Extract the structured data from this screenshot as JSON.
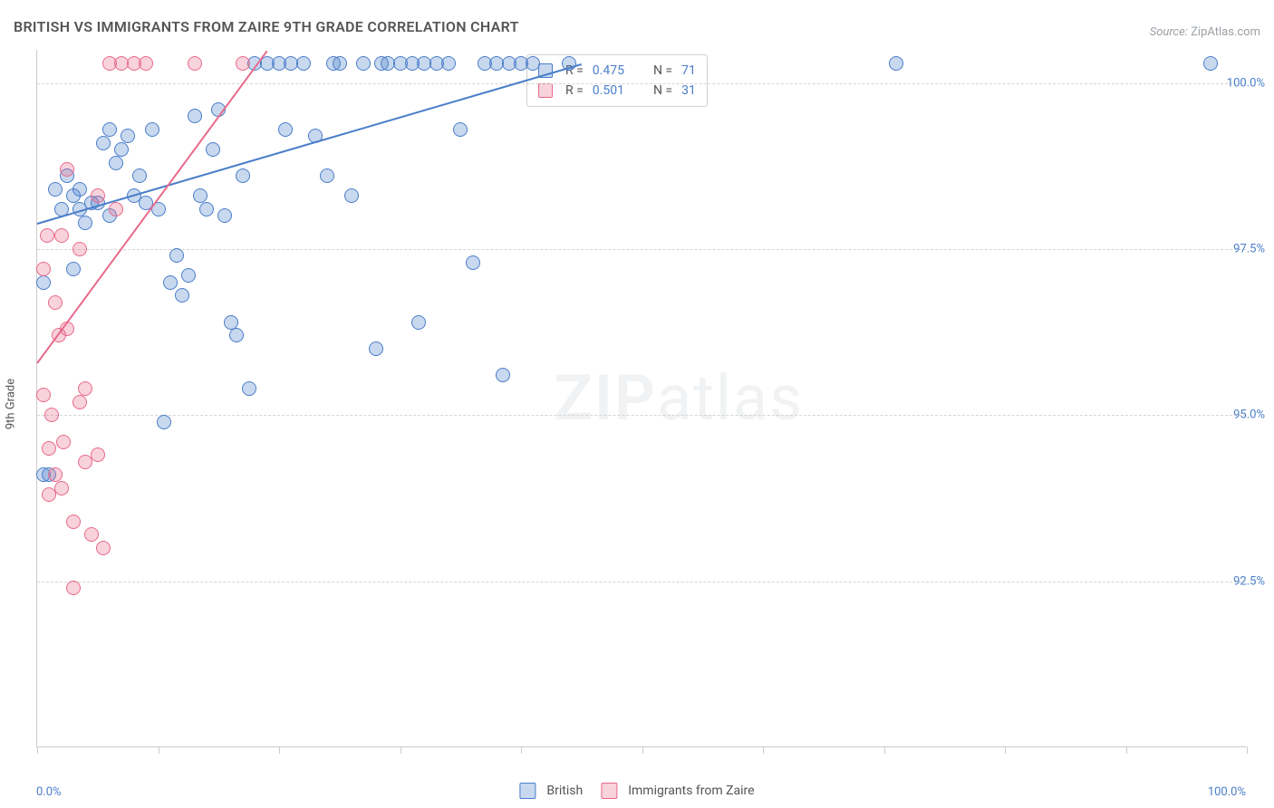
{
  "title": "BRITISH VS IMMIGRANTS FROM ZAIRE 9TH GRADE CORRELATION CHART",
  "source": {
    "label": "Source:",
    "value": "ZipAtlas.com"
  },
  "ylabel": "9th Grade",
  "watermark": {
    "bold": "ZIP",
    "rest": "atlas"
  },
  "chart": {
    "type": "scatter",
    "background_color": "#ffffff",
    "grid_color": "#d5d5d5",
    "grid_dash": "4,4",
    "axis_color": "#cccccc",
    "text_color": "#555555",
    "value_color": "#4a7ec9",
    "xlim": [
      0,
      100
    ],
    "ylim": [
      90,
      100.5
    ],
    "y_grid": [
      92.5,
      95.0,
      97.5,
      100.0
    ],
    "y_tick_labels": [
      "92.5%",
      "95.0%",
      "97.5%",
      "100.0%"
    ],
    "x_ticks": [
      0,
      10,
      20,
      30,
      40,
      50,
      60,
      70,
      80,
      90,
      100
    ],
    "x_axis_labels": [
      {
        "x": 0,
        "text": "0.0%",
        "align": "left"
      },
      {
        "x": 100,
        "text": "100.0%",
        "align": "right"
      }
    ],
    "marker": {
      "radius": 8,
      "stroke_width": 1.2,
      "fill_opacity": 0.3
    },
    "series": [
      {
        "id": "british",
        "label": "British",
        "color": "#4a7ec9",
        "fill": "rgba(74,126,201,0.30)",
        "R": "0.475",
        "N": "71",
        "trend": {
          "x1": 0,
          "y1": 97.9,
          "x2": 45,
          "y2": 100.3
        },
        "points": [
          [
            0.5,
            97.0
          ],
          [
            0.5,
            94.1
          ],
          [
            1,
            94.1
          ],
          [
            1.5,
            98.4
          ],
          [
            2,
            98.1
          ],
          [
            2.5,
            98.6
          ],
          [
            3,
            97.2
          ],
          [
            3,
            98.3
          ],
          [
            3.5,
            98.4
          ],
          [
            3.5,
            98.1
          ],
          [
            4,
            97.9
          ],
          [
            4.5,
            98.2
          ],
          [
            5,
            98.2
          ],
          [
            5.5,
            99.1
          ],
          [
            6,
            98.0
          ],
          [
            6,
            99.3
          ],
          [
            6.5,
            98.8
          ],
          [
            7,
            99.0
          ],
          [
            7.5,
            99.2
          ],
          [
            8,
            98.3
          ],
          [
            8.5,
            98.6
          ],
          [
            9,
            98.2
          ],
          [
            9.5,
            99.3
          ],
          [
            10,
            98.1
          ],
          [
            10.5,
            94.9
          ],
          [
            11,
            97.0
          ],
          [
            11.5,
            97.4
          ],
          [
            12,
            96.8
          ],
          [
            12.5,
            97.1
          ],
          [
            13,
            99.5
          ],
          [
            13.5,
            98.3
          ],
          [
            14,
            98.1
          ],
          [
            14.5,
            99.0
          ],
          [
            15,
            99.6
          ],
          [
            15.5,
            98.0
          ],
          [
            16,
            96.4
          ],
          [
            16.5,
            96.2
          ],
          [
            17,
            98.6
          ],
          [
            17.5,
            95.4
          ],
          [
            18,
            100.3
          ],
          [
            19,
            100.3
          ],
          [
            20,
            100.3
          ],
          [
            20.5,
            99.3
          ],
          [
            21,
            100.3
          ],
          [
            22,
            100.3
          ],
          [
            23,
            99.2
          ],
          [
            24,
            98.6
          ],
          [
            24.5,
            100.3
          ],
          [
            25,
            100.3
          ],
          [
            26,
            98.3
          ],
          [
            27,
            100.3
          ],
          [
            28,
            96.0
          ],
          [
            28.5,
            100.3
          ],
          [
            29,
            100.3
          ],
          [
            30,
            100.3
          ],
          [
            31,
            100.3
          ],
          [
            31.5,
            96.4
          ],
          [
            32,
            100.3
          ],
          [
            33,
            100.3
          ],
          [
            34,
            100.3
          ],
          [
            35,
            99.3
          ],
          [
            36,
            97.3
          ],
          [
            37,
            100.3
          ],
          [
            38,
            100.3
          ],
          [
            38.5,
            95.6
          ],
          [
            39,
            100.3
          ],
          [
            40,
            100.3
          ],
          [
            41,
            100.3
          ],
          [
            44,
            100.3
          ],
          [
            71,
            100.3
          ],
          [
            97,
            100.3
          ]
        ]
      },
      {
        "id": "zaire",
        "label": "Immigrants from Zaire",
        "color": "#e86a8a",
        "fill": "rgba(232,106,138,0.30)",
        "R": "0.501",
        "N": "31",
        "trend": {
          "x1": 0,
          "y1": 95.8,
          "x2": 19,
          "y2": 100.5
        },
        "points": [
          [
            0.5,
            97.2
          ],
          [
            0.5,
            95.3
          ],
          [
            0.8,
            97.7
          ],
          [
            1,
            93.8
          ],
          [
            1,
            94.5
          ],
          [
            1.2,
            95.0
          ],
          [
            1.5,
            94.1
          ],
          [
            1.5,
            96.7
          ],
          [
            1.8,
            96.2
          ],
          [
            2,
            93.9
          ],
          [
            2,
            97.7
          ],
          [
            2.2,
            94.6
          ],
          [
            2.5,
            98.7
          ],
          [
            2.5,
            96.3
          ],
          [
            3,
            93.4
          ],
          [
            3,
            92.4
          ],
          [
            3.5,
            95.2
          ],
          [
            3.5,
            97.5
          ],
          [
            4,
            94.3
          ],
          [
            4,
            95.4
          ],
          [
            4.5,
            93.2
          ],
          [
            5,
            98.3
          ],
          [
            5,
            94.4
          ],
          [
            5.5,
            93.0
          ],
          [
            6,
            100.3
          ],
          [
            6.5,
            98.1
          ],
          [
            7,
            100.3
          ],
          [
            8,
            100.3
          ],
          [
            9,
            100.3
          ],
          [
            13,
            100.3
          ],
          [
            17,
            100.3
          ]
        ]
      }
    ],
    "rn_box": {
      "r_prefix": "R = ",
      "n_prefix": "N = "
    }
  },
  "legend": {
    "items": [
      {
        "series": "british",
        "label": "British"
      },
      {
        "series": "zaire",
        "label": "Immigrants from Zaire"
      }
    ]
  }
}
